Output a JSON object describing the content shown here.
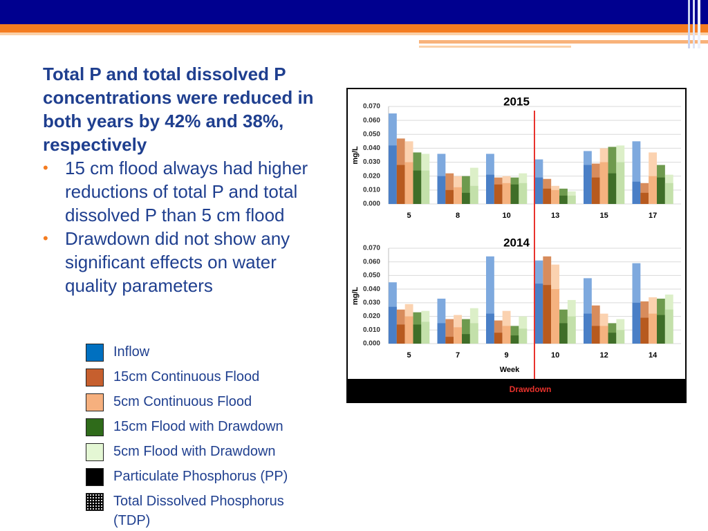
{
  "slide": {
    "title": "Total P and total dissolved P concentrations were reduced in both years by 42% and 38%, respectively",
    "bullets": [
      "15 cm flood always had higher reductions of total P and total dissolved P than 5 cm flood",
      "Drawdown did not show any significant effects on water quality parameters"
    ]
  },
  "legend": [
    {
      "label": "Inflow",
      "color": "#0070c0"
    },
    {
      "label": "15cm Continuous Flood",
      "color": "#c65f2e"
    },
    {
      "label": "5cm Continuous Flood",
      "color": "#f6b07e"
    },
    {
      "label": "15cm Flood with Drawdown",
      "color": "#2f6b1a"
    },
    {
      "label": "5cm Flood with Drawdown",
      "color": "#e4f7d4"
    },
    {
      "label": "Particulate Phosphorus (PP)",
      "color": "#000000"
    },
    {
      "label": "Total Dissolved Phosphorus (TDP)",
      "color": "#000000",
      "pattern": "dotted"
    }
  ],
  "chart_data": [
    {
      "type": "bar",
      "title": "2015",
      "ylabel": "mg/L",
      "categories": [
        "5",
        "8",
        "10",
        "13",
        "15",
        "17"
      ],
      "ylim": [
        0,
        0.07
      ],
      "yticks": [
        {
          "value": 0,
          "label": "0.000"
        },
        {
          "value": 0.01,
          "label": "0.010"
        },
        {
          "value": 0.02,
          "label": "0.020"
        },
        {
          "value": 0.03,
          "label": "0.030"
        },
        {
          "value": 0.04,
          "label": "0.040"
        },
        {
          "value": 0.05,
          "label": "0.050"
        },
        {
          "value": 0.06,
          "label": "0.060"
        },
        {
          "value": 0.07,
          "label": "0.070"
        }
      ],
      "grid": true,
      "series": [
        {
          "color": "#7ea9de",
          "dissolved_color": "#4a7fc6",
          "values": [
            0.065,
            0.036,
            0.036,
            0.032,
            0.038,
            0.045
          ],
          "dissolved": [
            0.042,
            0.02,
            0.021,
            0.019,
            0.028,
            0.016
          ]
        },
        {
          "color": "#d88c5c",
          "dissolved_color": "#b75a1f",
          "values": [
            0.047,
            0.022,
            0.019,
            0.018,
            0.029,
            0.015
          ],
          "dissolved": [
            0.028,
            0.01,
            0.014,
            0.011,
            0.019,
            0.008
          ]
        },
        {
          "color": "#fbd2b0",
          "dissolved_color": "#f5b27f",
          "values": [
            0.045,
            0.02,
            0.02,
            0.013,
            0.04,
            0.037
          ],
          "dissolved": [
            0.03,
            0.012,
            0.015,
            0.01,
            0.03,
            0.02
          ]
        },
        {
          "color": "#6e9a4e",
          "dissolved_color": "#3f6e28",
          "values": [
            0.037,
            0.02,
            0.019,
            0.011,
            0.041,
            0.028
          ],
          "dissolved": [
            0.024,
            0.008,
            0.014,
            0.006,
            0.022,
            0.019
          ]
        },
        {
          "color": "#dcefc8",
          "dissolved_color": "#c3e0aa",
          "values": [
            0.036,
            0.026,
            0.022,
            0.009,
            0.042,
            0.021
          ],
          "dissolved": [
            0.024,
            0.013,
            0.015,
            0.006,
            0.03,
            0.015
          ]
        }
      ]
    },
    {
      "type": "bar",
      "title": "2014",
      "ylabel": "mg/L",
      "xlabel": "Week",
      "annotation": "Drawdown",
      "categories": [
        "5",
        "7",
        "9",
        "10",
        "12",
        "14"
      ],
      "ylim": [
        0,
        0.07
      ],
      "yticks": [
        {
          "value": 0,
          "label": "0.000"
        },
        {
          "value": 0.01,
          "label": "0.010"
        },
        {
          "value": 0.02,
          "label": "0.020"
        },
        {
          "value": 0.03,
          "label": "0.030"
        },
        {
          "value": 0.04,
          "label": "0.040"
        },
        {
          "value": 0.05,
          "label": "0.050"
        },
        {
          "value": 0.06,
          "label": "0.060"
        },
        {
          "value": 0.07,
          "label": "0.070"
        }
      ],
      "grid": true,
      "series": [
        {
          "color": "#7ea9de",
          "dissolved_color": "#4a7fc6",
          "values": [
            0.045,
            0.033,
            0.064,
            0.061,
            0.048,
            0.059
          ],
          "dissolved": [
            0.027,
            0.015,
            0.022,
            0.044,
            0.022,
            0.03
          ]
        },
        {
          "color": "#d88c5c",
          "dissolved_color": "#b75a1f",
          "values": [
            0.025,
            0.018,
            0.017,
            0.064,
            0.028,
            0.031
          ],
          "dissolved": [
            0.014,
            0.005,
            0.008,
            0.043,
            0.013,
            0.019
          ]
        },
        {
          "color": "#fbd2b0",
          "dissolved_color": "#f5b27f",
          "values": [
            0.029,
            0.021,
            0.024,
            0.058,
            0.022,
            0.034
          ],
          "dissolved": [
            0.02,
            0.012,
            0.013,
            0.04,
            0.013,
            0.022
          ]
        },
        {
          "color": "#6e9a4e",
          "dissolved_color": "#3f6e28",
          "values": [
            0.023,
            0.018,
            0.013,
            0.025,
            0.015,
            0.033
          ],
          "dissolved": [
            0.014,
            0.007,
            0.006,
            0.015,
            0.008,
            0.021
          ]
        },
        {
          "color": "#dcefc8",
          "dissolved_color": "#c3e0aa",
          "values": [
            0.024,
            0.026,
            0.02,
            0.032,
            0.018,
            0.036
          ],
          "dissolved": [
            0.016,
            0.015,
            0.011,
            0.02,
            0.01,
            0.025
          ]
        }
      ]
    }
  ]
}
